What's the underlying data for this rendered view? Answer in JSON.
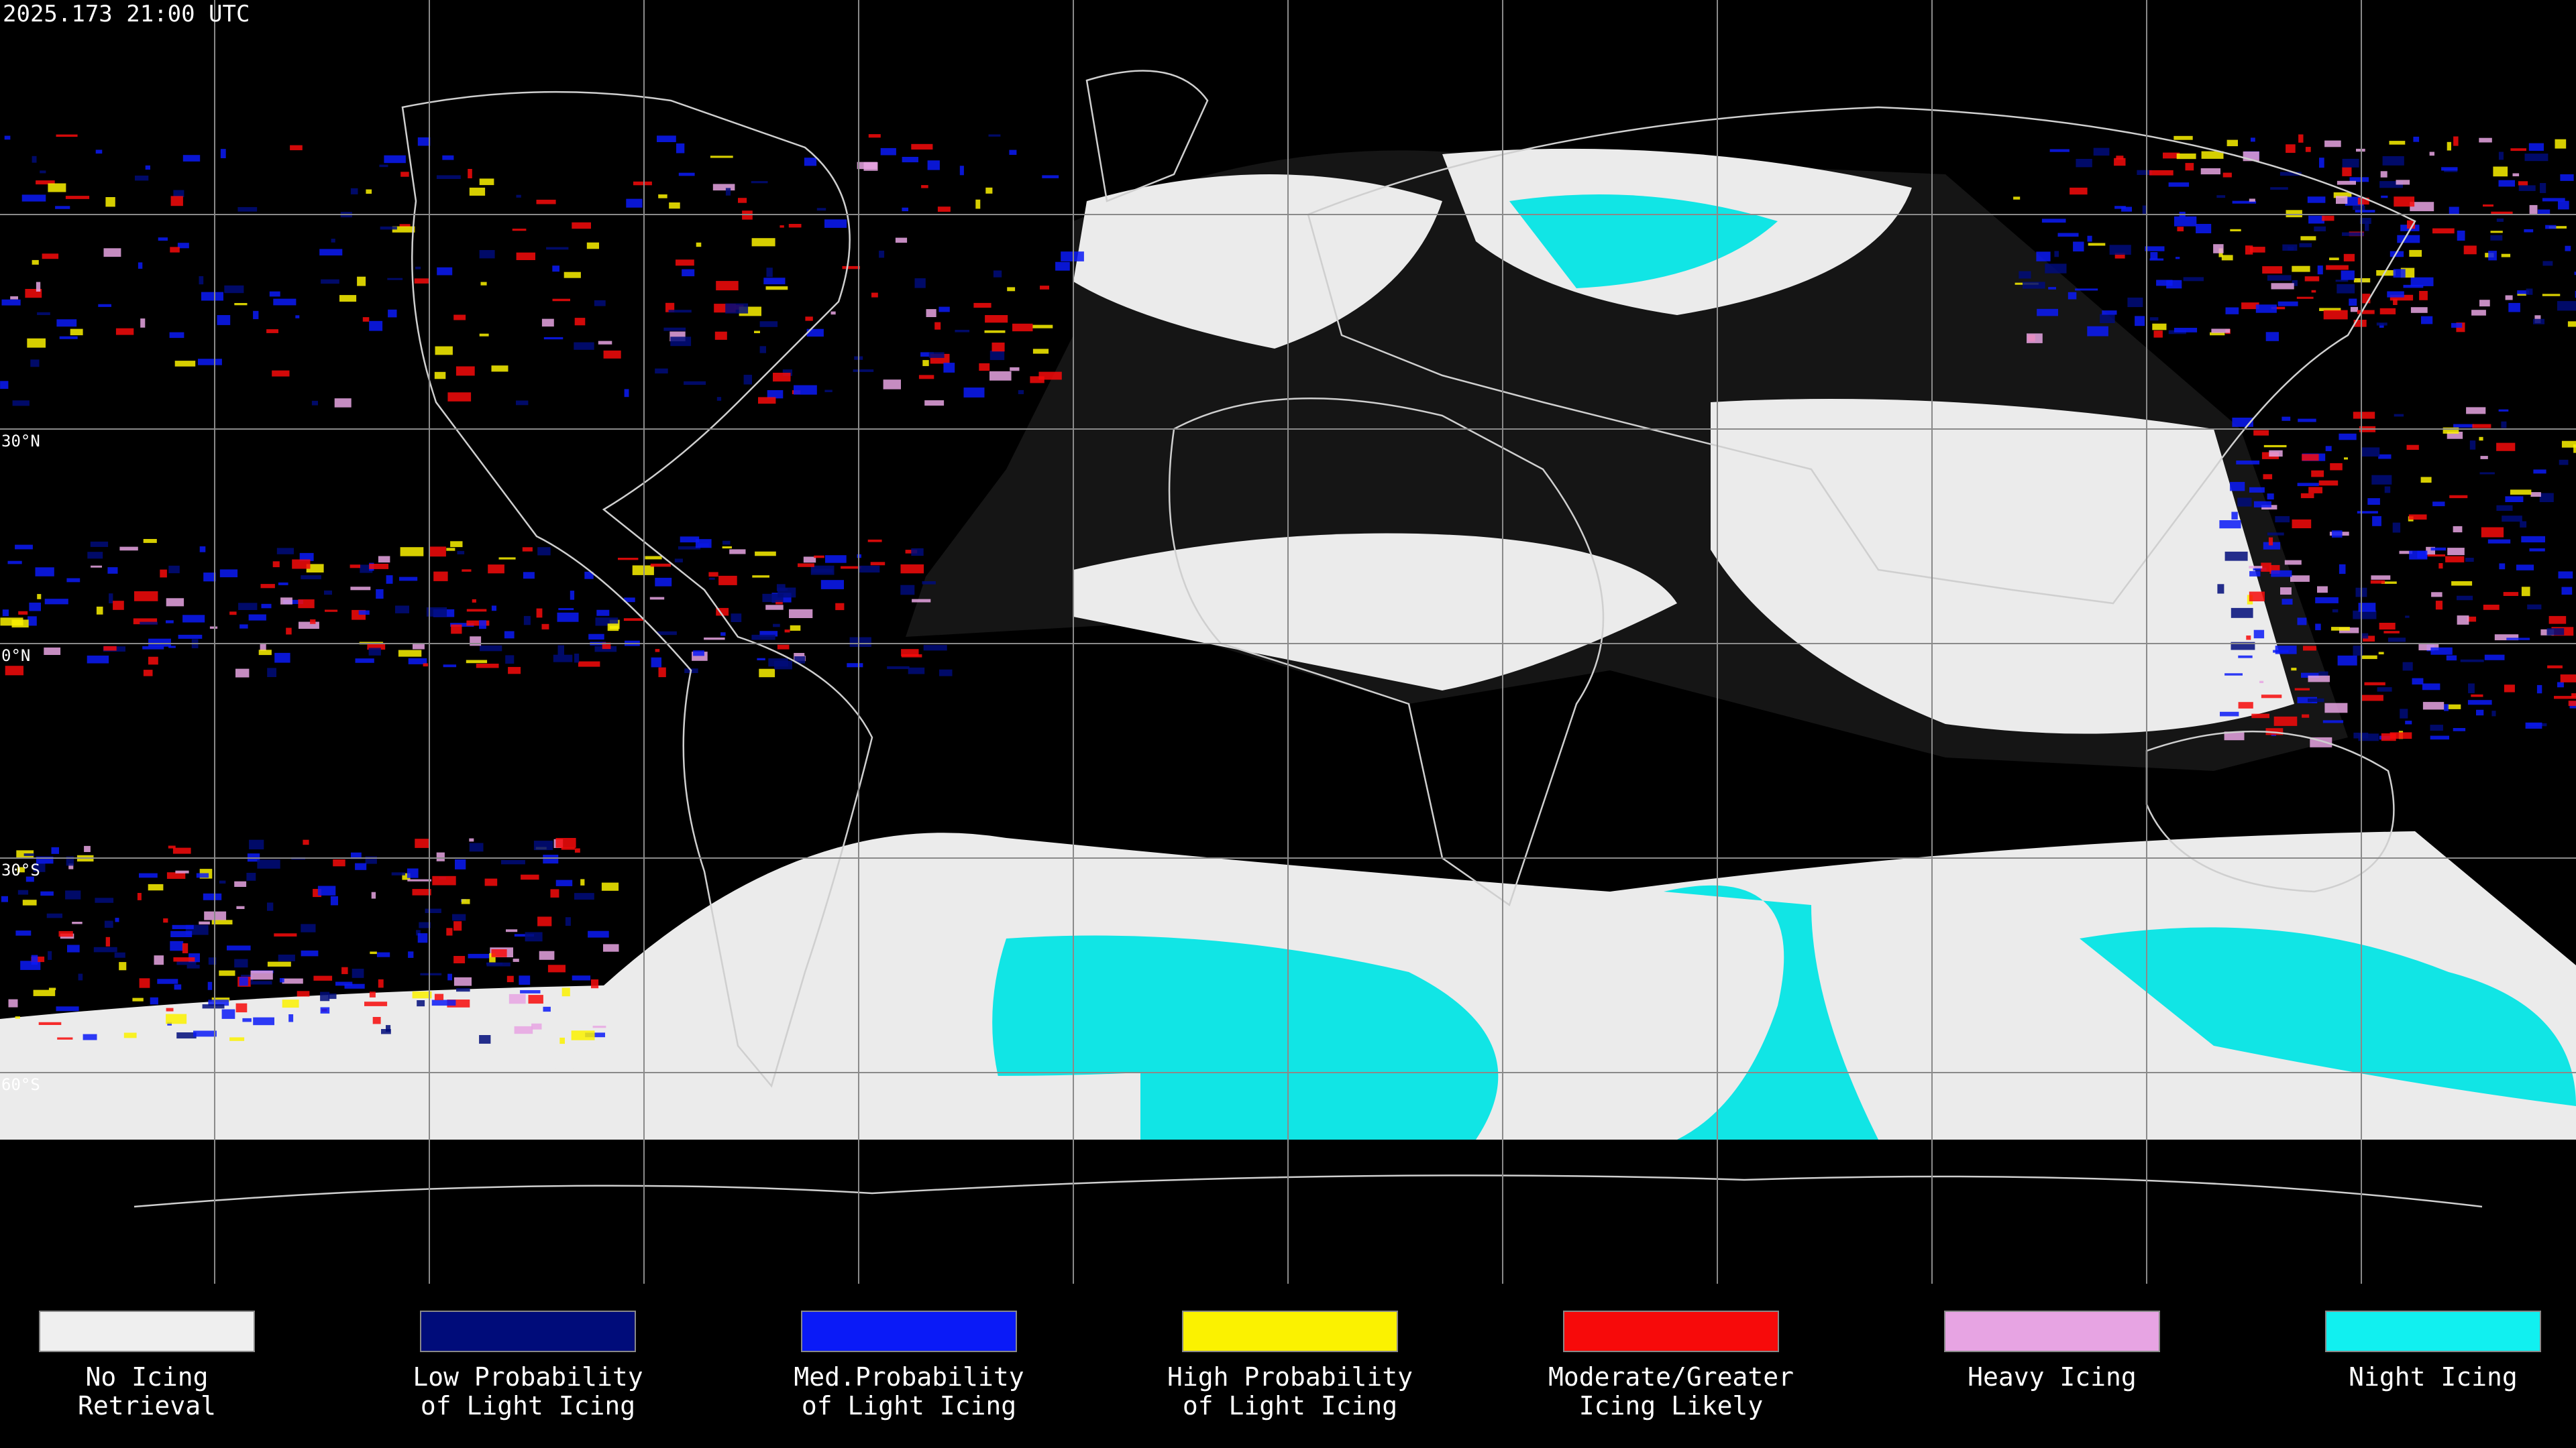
{
  "header": {
    "title": "2025.173 21:00 UTC"
  },
  "map": {
    "latitude_labels": [
      "30°N",
      "0°N",
      "30°S",
      "60°S"
    ]
  },
  "legend": {
    "items": [
      {
        "lines": [
          "No Icing",
          "Retrieval"
        ],
        "color": "#efefef"
      },
      {
        "lines": [
          "Low Probability",
          "of Light Icing"
        ],
        "color": "#000c7a"
      },
      {
        "lines": [
          "Med.Probability",
          "of Light Icing"
        ],
        "color": "#0a1af7"
      },
      {
        "lines": [
          "High Probability",
          "of Light Icing"
        ],
        "color": "#fbf200"
      },
      {
        "lines": [
          "Moderate/Greater",
          "Icing Likely"
        ],
        "color": "#f70a0a"
      },
      {
        "lines": [
          "Heavy Icing"
        ],
        "color": "#e7a4e3"
      },
      {
        "lines": [
          "Night Icing"
        ],
        "color": "#11f0f0"
      }
    ]
  }
}
